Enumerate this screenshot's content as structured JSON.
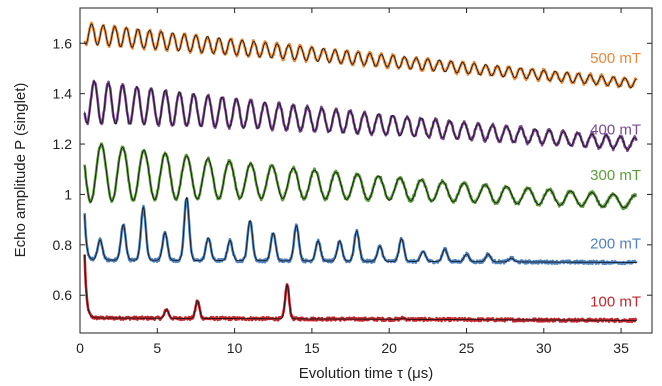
{
  "chart_data": {
    "type": "line",
    "xlabel": "Evolution time τ (μs)",
    "ylabel": "Echo amplitude P (singlet)",
    "xlim": [
      0,
      37
    ],
    "ylim": [
      0.45,
      1.74
    ],
    "x_ticks": [
      0,
      5,
      10,
      15,
      20,
      25,
      30,
      35
    ],
    "y_ticks": [
      0.6,
      0.8,
      1,
      1.2,
      1.4,
      1.6
    ],
    "y_tick_labels": [
      "0.6",
      "0.8",
      "1",
      "1.2",
      "1.4",
      "1.6"
    ],
    "grid": false,
    "fit_line_color": "#111111",
    "series": [
      {
        "name": "100 mT",
        "color": "#c0282e",
        "pattern": "sparse revivals",
        "baseline_start": 0.51,
        "baseline_end": 0.5,
        "initial_peak": 0.76,
        "peaks": [
          [
            5.6,
            0.545
          ],
          [
            7.6,
            0.58
          ],
          [
            13.4,
            0.645
          ],
          [
            20.9,
            0.515
          ]
        ]
      },
      {
        "name": "200 mT",
        "color": "#4f82bf",
        "pattern": "revivals",
        "baseline_start": 0.74,
        "baseline_end": 0.73,
        "initial_peak": 0.92,
        "peaks": [
          [
            1.3,
            0.82
          ],
          [
            2.8,
            0.88
          ],
          [
            4.1,
            0.95
          ],
          [
            5.5,
            0.85
          ],
          [
            6.9,
            0.99
          ],
          [
            8.3,
            0.83
          ],
          [
            9.7,
            0.82
          ],
          [
            11.0,
            0.9
          ],
          [
            12.5,
            0.85
          ],
          [
            14.0,
            0.88
          ],
          [
            15.4,
            0.82
          ],
          [
            16.8,
            0.82
          ],
          [
            17.9,
            0.86
          ],
          [
            19.4,
            0.8
          ],
          [
            20.8,
            0.83
          ],
          [
            22.2,
            0.78
          ],
          [
            23.6,
            0.79
          ],
          [
            25.0,
            0.77
          ],
          [
            26.4,
            0.77
          ],
          [
            27.9,
            0.755
          ]
        ]
      },
      {
        "name": "300 mT",
        "color": "#5d9b3c",
        "pattern": "oscillation",
        "period": 1.38,
        "center_start": 1.09,
        "center_end": 0.97,
        "amp_start": 0.11,
        "amp_decay": 17
      },
      {
        "name": "400 mT",
        "color": "#7b4b94",
        "pattern": "oscillation",
        "period": 0.92,
        "center_start": 1.37,
        "center_end": 1.2,
        "amp_start": 0.075,
        "amp_decay": 20
      },
      {
        "name": "500 mT",
        "color": "#e8883a",
        "pattern": "oscillation",
        "period": 0.75,
        "center_start": 1.64,
        "center_end": 1.44,
        "amp_start": 0.03,
        "amp_decay": 22
      }
    ]
  }
}
